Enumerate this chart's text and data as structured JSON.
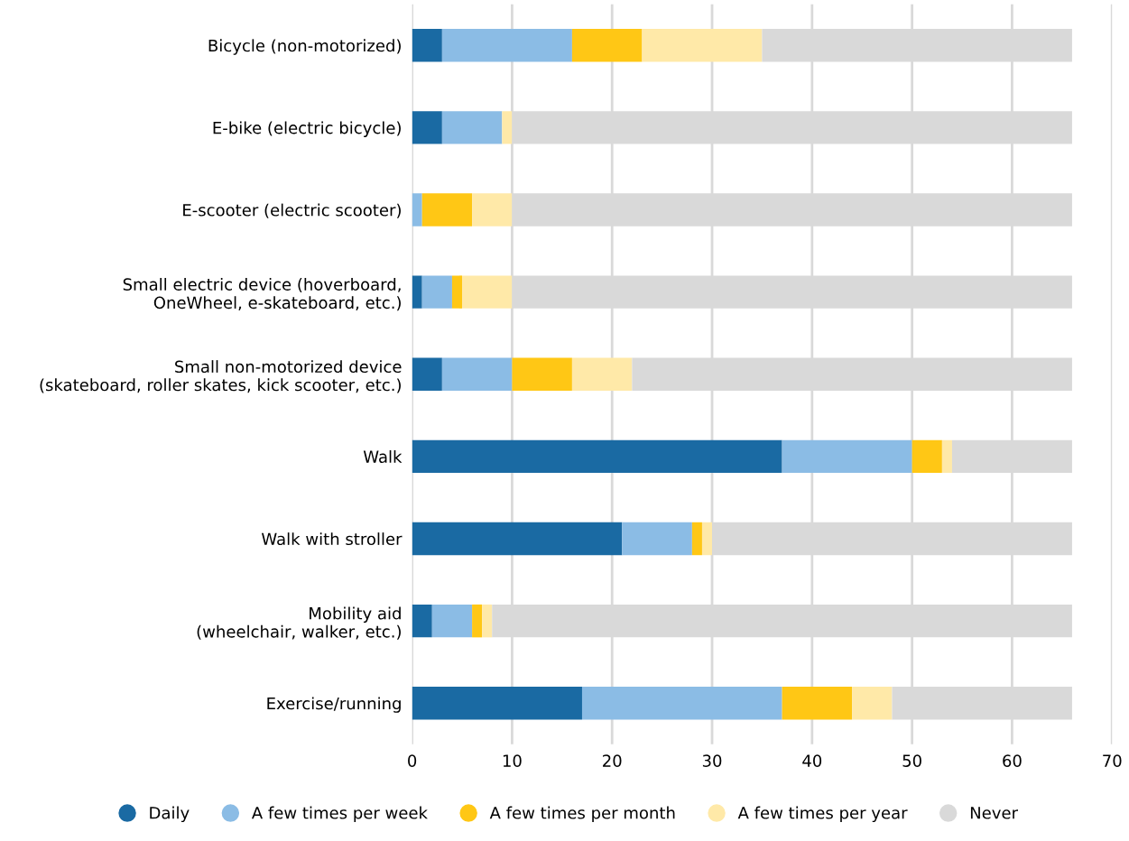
{
  "chart_data": {
    "type": "bar",
    "orientation": "horizontal",
    "stacked": true,
    "categories": [
      "Bicycle (non-motorized)",
      "E-bike (electric bicycle)",
      "E-scooter (electric scooter)",
      "Small electric device (hoverboard,\nOneWheel, e-skateboard, etc.)",
      "Small non-motorized device\n(skateboard, roller skates, kick scooter, etc.)",
      "Walk",
      "Walk with stroller",
      "Mobility aid\n(wheelchair, walker, etc.)",
      "Exercise/running"
    ],
    "series": [
      {
        "name": "Daily",
        "color": "#1a6aa3",
        "values": [
          3,
          3,
          0,
          1,
          3,
          37,
          21,
          2,
          17
        ]
      },
      {
        "name": "A few times per week",
        "color": "#8bbce5",
        "values": [
          13,
          6,
          1,
          3,
          7,
          13,
          7,
          4,
          20
        ]
      },
      {
        "name": "A few times per month",
        "color": "#ffc715",
        "values": [
          7,
          0,
          5,
          1,
          6,
          3,
          1,
          1,
          7
        ]
      },
      {
        "name": "A few times per year",
        "color": "#ffe9a8",
        "values": [
          12,
          1,
          4,
          5,
          6,
          1,
          1,
          1,
          4
        ]
      },
      {
        "name": "Never",
        "color": "#d9d9d9",
        "values": [
          31,
          56,
          56,
          56,
          44,
          12,
          36,
          58,
          18
        ]
      }
    ],
    "xlim": [
      0,
      70
    ],
    "xticks": [
      0,
      10,
      20,
      30,
      40,
      50,
      60,
      70
    ],
    "grid": "x",
    "legend": "bottom"
  }
}
